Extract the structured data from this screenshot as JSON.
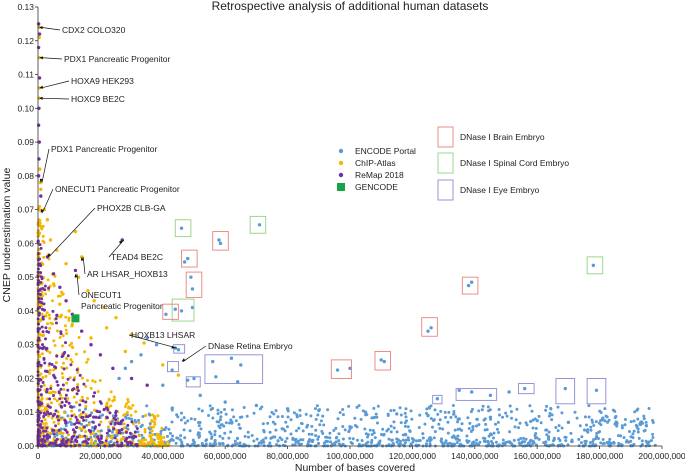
{
  "chart_data": {
    "type": "scatter",
    "title": "Retrospective analysis of additional human datasets",
    "xlabel": "Number of bases covered",
    "ylabel": "CNEP underestimation value",
    "xlim": [
      0,
      200000000
    ],
    "ylim": [
      0,
      0.13
    ],
    "x_ticks": [
      0,
      20000000,
      40000000,
      60000000,
      80000000,
      100000000,
      120000000,
      140000000,
      160000000,
      180000000,
      200000000
    ],
    "x_tick_labels": [
      "0",
      "20,000,000",
      "40,000,000",
      "60,000,000",
      "80,000,000",
      "100,000,000",
      "120,000,000",
      "140,000,000",
      "160,000,000",
      "180,000,000",
      "200,000,000"
    ],
    "y_ticks": [
      0,
      0.01,
      0.02,
      0.03,
      0.04,
      0.05,
      0.06,
      0.07,
      0.08,
      0.09,
      0.1,
      0.11,
      0.12,
      0.13
    ],
    "y_tick_labels": [
      "0.00",
      "0.01",
      "0.02",
      "0.03",
      "0.04",
      "0.05",
      "0.06",
      "0.07",
      "0.08",
      "0.09",
      "0.10",
      "0.11",
      "0.12",
      "0.13"
    ],
    "grid": false,
    "legend_position": "right",
    "series": [
      {
        "name": "ENCODE Portal",
        "color": "#5b9bd5",
        "marker": "circle",
        "points": [
          [
            46000000,
            0.0645
          ],
          [
            71000000,
            0.0655
          ],
          [
            58000000,
            0.061
          ],
          [
            58500000,
            0.06
          ],
          [
            48000000,
            0.0555
          ],
          [
            47000000,
            0.0545
          ],
          [
            49000000,
            0.05
          ],
          [
            49500000,
            0.0465
          ],
          [
            44000000,
            0.0405
          ],
          [
            46000000,
            0.04
          ],
          [
            49500000,
            0.041
          ],
          [
            41000000,
            0.039
          ],
          [
            138000000,
            0.0475
          ],
          [
            139000000,
            0.0485
          ],
          [
            178000000,
            0.0535
          ],
          [
            126000000,
            0.035
          ],
          [
            125000000,
            0.034
          ],
          [
            44000000,
            0.029
          ],
          [
            45000000,
            0.0285
          ],
          [
            111000000,
            0.025
          ],
          [
            110000000,
            0.0255
          ],
          [
            96000000,
            0.0225
          ],
          [
            100000000,
            0.023
          ],
          [
            56000000,
            0.025
          ],
          [
            62000000,
            0.026
          ],
          [
            65000000,
            0.024
          ],
          [
            57000000,
            0.0205
          ],
          [
            64000000,
            0.019
          ],
          [
            48000000,
            0.0195
          ],
          [
            50000000,
            0.02
          ],
          [
            43000000,
            0.0225
          ],
          [
            135000000,
            0.0165
          ],
          [
            139000000,
            0.016
          ],
          [
            145000000,
            0.015
          ],
          [
            151000000,
            0.016
          ],
          [
            156000000,
            0.017
          ],
          [
            169000000,
            0.017
          ],
          [
            179000000,
            0.0165
          ],
          [
            128000000,
            0.014
          ],
          [
            35000000,
            0.032
          ],
          [
            38000000,
            0.03
          ],
          [
            33000000,
            0.027
          ],
          [
            30000000,
            0.025
          ],
          [
            28000000,
            0.023
          ],
          [
            26000000,
            0.02
          ],
          [
            40000000,
            0.018
          ],
          [
            52000000,
            0.015
          ],
          [
            60000000,
            0.013
          ],
          [
            70000000,
            0.012
          ],
          [
            80000000,
            0.011
          ],
          [
            90000000,
            0.0105
          ],
          [
            105000000,
            0.01
          ],
          [
            115000000,
            0.0095
          ],
          [
            125000000,
            0.009
          ],
          [
            135000000,
            0.008
          ],
          [
            145000000,
            0.0085
          ],
          [
            160000000,
            0.0075
          ],
          [
            170000000,
            0.007
          ],
          [
            185000000,
            0.0065
          ],
          [
            195000000,
            0.006
          ]
        ],
        "cloud": {
          "x_range": [
            2000000,
            198000000
          ],
          "y_max": 0.012,
          "count": 1100
        }
      },
      {
        "name": "ChIP-Atlas",
        "color": "#f5b800",
        "marker": "circle",
        "points": [
          [
            300000,
            0.124
          ],
          [
            400000,
            0.121
          ],
          [
            400000,
            0.115
          ],
          [
            400000,
            0.106
          ],
          [
            300000,
            0.103
          ],
          [
            800000,
            0.078
          ],
          [
            900000,
            0.076
          ],
          [
            600000,
            0.082
          ],
          [
            12000000,
            0.0635
          ],
          [
            14000000,
            0.056
          ],
          [
            3000000,
            0.067
          ],
          [
            2000000,
            0.07
          ],
          [
            4000000,
            0.061
          ],
          [
            6000000,
            0.058
          ],
          [
            9000000,
            0.054
          ],
          [
            13000000,
            0.05
          ],
          [
            16000000,
            0.046
          ],
          [
            18000000,
            0.043
          ],
          [
            21000000,
            0.041
          ],
          [
            8000000,
            0.045
          ],
          [
            25000000,
            0.038
          ],
          [
            30000000,
            0.033
          ],
          [
            34000000,
            0.0305
          ],
          [
            22000000,
            0.035
          ],
          [
            10000000,
            0.04
          ],
          [
            5000000,
            0.048
          ],
          [
            7000000,
            0.042
          ],
          [
            17000000,
            0.032
          ],
          [
            28000000,
            0.028
          ],
          [
            40000000,
            0.024
          ],
          [
            45000000,
            0.021
          ],
          [
            11000000,
            0.036
          ]
        ],
        "cloud": {
          "x_range": [
            0,
            42000000
          ],
          "y_max": 0.07,
          "count": 520
        }
      },
      {
        "name": "ReMap 2018",
        "color": "#7030a0",
        "marker": "circle",
        "points": [
          [
            200000,
            0.125
          ],
          [
            500000,
            0.122
          ],
          [
            200000,
            0.118
          ],
          [
            500000,
            0.109
          ],
          [
            300000,
            0.1
          ],
          [
            200000,
            0.095
          ],
          [
            400000,
            0.09
          ],
          [
            300000,
            0.085
          ],
          [
            200000,
            0.08
          ],
          [
            900000,
            0.074
          ],
          [
            27000000,
            0.061
          ],
          [
            12000000,
            0.052
          ],
          [
            3000000,
            0.056
          ],
          [
            5000000,
            0.051
          ],
          [
            7000000,
            0.047
          ],
          [
            9000000,
            0.043
          ],
          [
            11000000,
            0.039
          ],
          [
            14000000,
            0.034
          ],
          [
            17000000,
            0.03
          ],
          [
            20000000,
            0.027
          ],
          [
            24000000,
            0.023
          ],
          [
            30000000,
            0.02
          ],
          [
            35000000,
            0.018
          ]
        ],
        "cloud": {
          "x_range": [
            0,
            32000000
          ],
          "y_max": 0.06,
          "count": 420
        }
      },
      {
        "name": "GENCODE",
        "color": "#19a349",
        "marker": "square",
        "points": [
          [
            12000000,
            0.0378
          ]
        ]
      }
    ],
    "annotations": [
      {
        "text": "CDX2 COLO320",
        "x": 300000,
        "y": 0.124
      },
      {
        "text": "PDX1 Pancreatic Progenitor",
        "x": 400000,
        "y": 0.115
      },
      {
        "text": "HOXA9 HEK293",
        "x": 400000,
        "y": 0.106
      },
      {
        "text": "HOXC9 BE2C",
        "x": 300000,
        "y": 0.103
      },
      {
        "text": "PDX1 Pancreatic Progenitor",
        "x": 800000,
        "y": 0.078
      },
      {
        "text": "ONECUT1 Pancreatic Progenitor",
        "x": 900000,
        "y": 0.069
      },
      {
        "text": "PHOX2B CLB-GA",
        "x": 3000000,
        "y": 0.056
      },
      {
        "text": "TEAD4 BE2C",
        "x": 27000000,
        "y": 0.061
      },
      {
        "text": "AR LHSAR_HOXB13",
        "x": 14000000,
        "y": 0.056
      },
      {
        "text": "ONECUT1\nPancreatic Progenitor",
        "x": 12000000,
        "y": 0.051
      },
      {
        "text": "HOXB13 LHSAR",
        "x": 44000000,
        "y": 0.029
      },
      {
        "text": "DNase Retina Embryo",
        "x": 46000000,
        "y": 0.025
      }
    ],
    "box_legend": [
      {
        "label": "DNase I Brain Embryo",
        "color": "#e8837e"
      },
      {
        "label": "DNase I Spinal Cord Embryo",
        "color": "#8fd47f"
      },
      {
        "label": "DNase I Eye Embryo",
        "color": "#8a8ad6"
      }
    ],
    "boxes": [
      {
        "group": "green",
        "x": [
          44000000,
          49000000
        ],
        "y": [
          0.062,
          0.067
        ]
      },
      {
        "group": "green",
        "x": [
          68000000,
          73000000
        ],
        "y": [
          0.063,
          0.068
        ]
      },
      {
        "group": "green",
        "x": [
          176000000,
          181000000
        ],
        "y": [
          0.051,
          0.056
        ]
      },
      {
        "group": "green",
        "x": [
          43000000,
          50000000
        ],
        "y": [
          0.037,
          0.0435
        ]
      },
      {
        "group": "red",
        "x": [
          56000000,
          61000000
        ],
        "y": [
          0.058,
          0.0635
        ]
      },
      {
        "group": "red",
        "x": [
          46000000,
          51000000
        ],
        "y": [
          0.053,
          0.058
        ]
      },
      {
        "group": "red",
        "x": [
          47500000,
          52500000
        ],
        "y": [
          0.044,
          0.0515
        ]
      },
      {
        "group": "red",
        "x": [
          136000000,
          141000000
        ],
        "y": [
          0.045,
          0.05
        ]
      },
      {
        "group": "red",
        "x": [
          123000000,
          128000000
        ],
        "y": [
          0.0325,
          0.038
        ]
      },
      {
        "group": "red",
        "x": [
          108000000,
          113000000
        ],
        "y": [
          0.0225,
          0.028
        ]
      },
      {
        "group": "red",
        "x": [
          94000000,
          100500000
        ],
        "y": [
          0.02,
          0.0255
        ]
      },
      {
        "group": "red",
        "x": [
          40000000,
          45000000
        ],
        "y": [
          0.0375,
          0.042
        ]
      },
      {
        "group": "purple",
        "x": [
          43500000,
          47000000
        ],
        "y": [
          0.0275,
          0.03
        ]
      },
      {
        "group": "purple",
        "x": [
          41500000,
          45000000
        ],
        "y": [
          0.022,
          0.025
        ]
      },
      {
        "group": "purple",
        "x": [
          47500000,
          52000000
        ],
        "y": [
          0.0175,
          0.0205
        ]
      },
      {
        "group": "purple",
        "x": [
          53500000,
          72000000
        ],
        "y": [
          0.0185,
          0.027
        ]
      },
      {
        "group": "purple",
        "x": [
          126500000,
          129500000
        ],
        "y": [
          0.0125,
          0.015
        ]
      },
      {
        "group": "purple",
        "x": [
          134000000,
          147000000
        ],
        "y": [
          0.0135,
          0.017
        ]
      },
      {
        "group": "purple",
        "x": [
          154000000,
          159000000
        ],
        "y": [
          0.0155,
          0.0185
        ]
      },
      {
        "group": "purple",
        "x": [
          166000000,
          172000000
        ],
        "y": [
          0.0125,
          0.02
        ]
      },
      {
        "group": "purple",
        "x": [
          176000000,
          182000000
        ],
        "y": [
          0.0125,
          0.02
        ]
      }
    ]
  }
}
